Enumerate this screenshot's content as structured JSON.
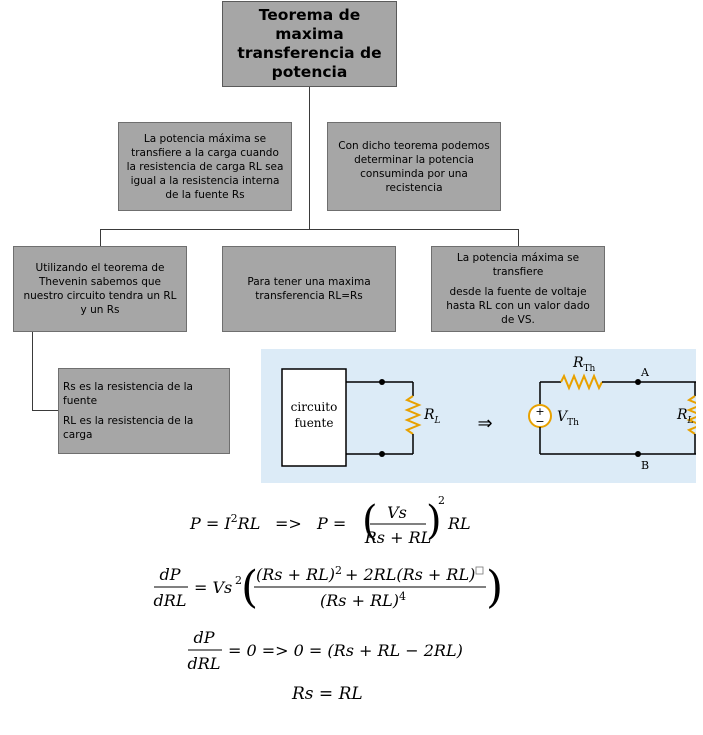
{
  "title": "Teorema de maxima transferencia de potencia",
  "boxes": {
    "top_left": "La potencia máxima se transfiere a la carga cuando la resistencia de carga RL sea igual a la resistencia interna de la fuente Rs",
    "top_right": "Con dicho teorema podemos determinar la potencia consuminda por una recistencia",
    "mid_left": "Utilizando el teorema de Thevenin sabemos que nuestro circuito tendra un RL y un Rs",
    "mid_center": "Para tener una maxima transferencia RL=Rs",
    "mid_right_line1": "La potencia máxima se transfiere",
    "mid_right_line2": "desde la fuente de voltaje hasta RL con un valor dado de VS.",
    "bottom_left_line1": "Rs es la resistencia de la fuente",
    "bottom_left_line2": "RL es la resistencia de la carga"
  },
  "circuit": {
    "source_label_1": "circuito",
    "source_label_2": "fuente",
    "load_label": "R",
    "load_sub": "L",
    "arrow": "⇒",
    "rth_label": "R",
    "rth_sub": "Th",
    "vth_label": "V",
    "vth_sub": "Th",
    "node_a": "A",
    "node_b": "B",
    "plus": "+",
    "minus": "−"
  },
  "equations": {
    "eq1_left": "P = I",
    "eq1_exp": "2",
    "eq1_rl": "RL",
    "eq1_arrow": "=>",
    "eq1_p": "P =",
    "eq1_num": "Vs",
    "eq1_den": "Rs + RL",
    "eq1_sq": "2",
    "eq1_tail": "RL",
    "eq2_dp": "dP",
    "eq2_drl": "dRL",
    "eq2_eq": "= Vs",
    "eq2_sq": "2",
    "eq2_num_a": "(Rs + RL)",
    "eq2_num_sq": "2",
    "eq2_num_b": "+ 2RL(Rs + RL)",
    "eq2_den": "(Rs + RL)",
    "eq2_den_exp": "4",
    "eq3_dp": "dP",
    "eq3_drl": "dRL",
    "eq3_tail": "= 0  => 0 = (Rs + RL − 2RL)",
    "eq4": "Rs = RL"
  }
}
